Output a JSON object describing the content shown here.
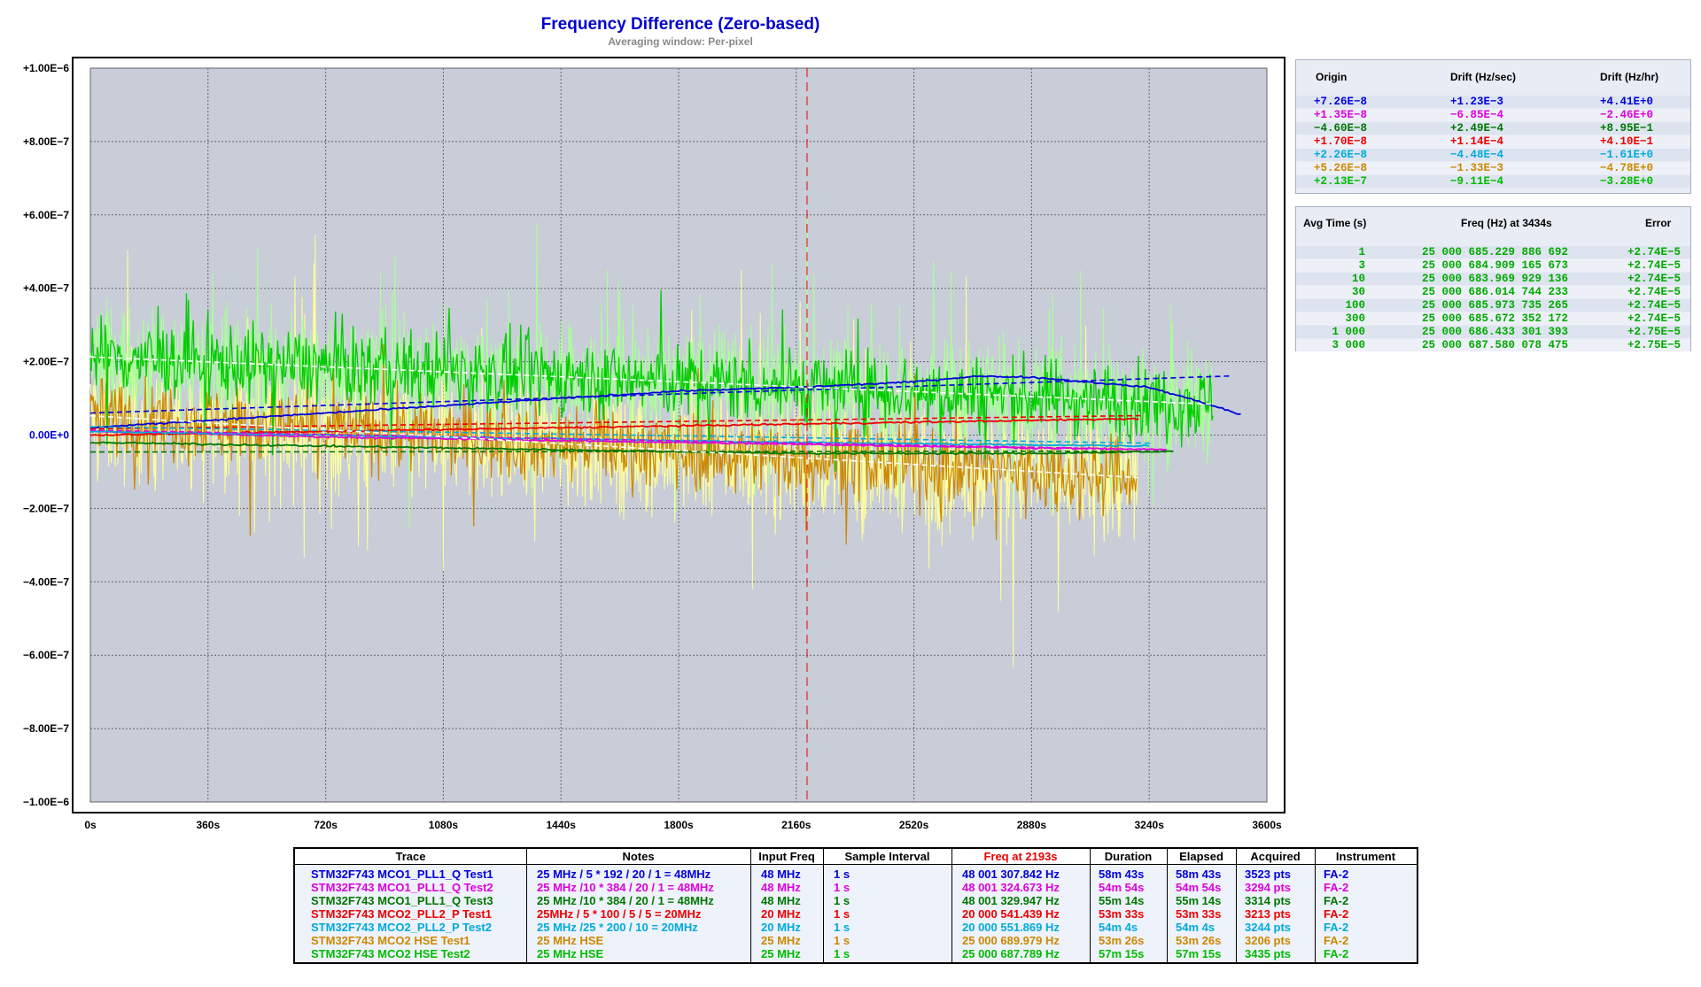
{
  "chart_data": {
    "type": "line",
    "title": "Frequency Difference (Zero-based)",
    "subtitle": "Averaging window: Per-pixel",
    "xlim": [
      0,
      3600
    ],
    "ylim": [
      -1e-06,
      1e-06
    ],
    "grid": true,
    "x_ticks": [
      "0s",
      "360s",
      "720s",
      "1080s",
      "1440s",
      "1800s",
      "2160s",
      "2520s",
      "2880s",
      "3240s",
      "3600s"
    ],
    "y_ticks": [
      "+1.00E−6",
      "+8.00E−7",
      "+6.00E−7",
      "+4.00E−7",
      "+2.00E−7",
      "0.00E+0",
      "−2.00E−7",
      "−4.00E−7",
      "−6.00E−7",
      "−8.00E−7",
      "−1.00E−6"
    ],
    "marker_x": 2193,
    "series": [
      {
        "name": "STM32F743 MCO1_PLL1_Q Test1",
        "color": "#0000dd",
        "duration": 3523,
        "drift_start": 7.26e-08,
        "trend": [
          [
            0,
            2e-08
          ],
          [
            360,
            4e-08
          ],
          [
            720,
            6e-08
          ],
          [
            1080,
            8e-08
          ],
          [
            1440,
            1e-07
          ],
          [
            1800,
            1.2e-07
          ],
          [
            2160,
            1.3e-07
          ],
          [
            2520,
            1.45e-07
          ],
          [
            2700,
            1.6e-07
          ],
          [
            2880,
            1.58e-07
          ],
          [
            3240,
            1.3e-07
          ],
          [
            3400,
            9e-08
          ],
          [
            3523,
            5.5e-08
          ]
        ],
        "fit": [
          [
            0,
            6e-08
          ],
          [
            3523,
            1.62e-07
          ]
        ]
      },
      {
        "name": "STM32F743 MCO1_PLL1_Q Test2",
        "color": "#dd00dd",
        "duration": 3294,
        "drift_start": 1.35e-08,
        "trend": [
          [
            0,
            1e-08
          ],
          [
            720,
            -5e-09
          ],
          [
            1440,
            -1.5e-08
          ],
          [
            2160,
            -2.5e-08
          ],
          [
            2880,
            -3.5e-08
          ],
          [
            3294,
            -4e-08
          ]
        ],
        "fit": [
          [
            0,
            1.35e-08
          ],
          [
            3294,
            -4e-08
          ]
        ]
      },
      {
        "name": "STM32F743 MCO1_PLL1_Q Test3",
        "color": "#007700",
        "duration": 3314,
        "drift_start": -4.6e-08,
        "trend": [
          [
            0,
            -2e-08
          ],
          [
            720,
            -3e-08
          ],
          [
            1440,
            -4e-08
          ],
          [
            2160,
            -5e-08
          ],
          [
            2880,
            -5e-08
          ],
          [
            3314,
            -4.5e-08
          ]
        ],
        "fit": [
          [
            0,
            -4.6e-08
          ],
          [
            3314,
            -4.4e-08
          ]
        ]
      },
      {
        "name": "STM32F743 MCO2_PLL2_P Test1",
        "color": "#ee0000",
        "duration": 3213,
        "drift_start": 1.7e-08,
        "trend": [
          [
            0,
            0
          ],
          [
            720,
            1e-08
          ],
          [
            1440,
            2e-08
          ],
          [
            2160,
            3e-08
          ],
          [
            2880,
            4e-08
          ],
          [
            3213,
            4.5e-08
          ]
        ],
        "fit": [
          [
            0,
            1.7e-08
          ],
          [
            3213,
            5.3e-08
          ]
        ]
      },
      {
        "name": "STM32F743 MCO2_PLL2_P Test2",
        "color": "#00aadd",
        "duration": 3244,
        "drift_start": 2.26e-08,
        "trend": [
          [
            0,
            1e-08
          ],
          [
            1080,
            -5e-09
          ],
          [
            2160,
            -2e-08
          ],
          [
            3244,
            -3e-08
          ]
        ],
        "fit": [
          [
            0,
            2.26e-08
          ],
          [
            3244,
            -2.2e-08
          ]
        ]
      },
      {
        "name": "STM32F743 MCO2 HSE Test1",
        "color": "#cc8800",
        "noise_color": "#ffff99",
        "duration": 3206,
        "drift_start": 5.26e-08,
        "noise": 1.6e-07,
        "fit": [
          [
            0,
            5.26e-08
          ],
          [
            3206,
            -1.16e-07
          ]
        ]
      },
      {
        "name": "STM32F743 MCO2 HSE Test2",
        "color": "#00cc00",
        "noise_color": "#aaff99",
        "duration": 3435,
        "drift_start": 2.13e-07,
        "noise": 1.4e-07,
        "fit": [
          [
            0,
            2.13e-07
          ],
          [
            3435,
            8.4e-08
          ]
        ]
      }
    ]
  },
  "drift_panel": {
    "headers": [
      "Origin",
      "Drift (Hz/sec)",
      "Drift (Hz/hr)"
    ],
    "rows": [
      {
        "origin": "+7.26E−8",
        "hz_sec": "+1.23E−3",
        "hz_hr": "+4.41E+0",
        "color": "#0000dd"
      },
      {
        "origin": "+1.35E−8",
        "hz_sec": "−6.85E−4",
        "hz_hr": "−2.46E+0",
        "color": "#dd00dd"
      },
      {
        "origin": "−4.60E−8",
        "hz_sec": "+2.49E−4",
        "hz_hr": "+8.95E−1",
        "color": "#007700"
      },
      {
        "origin": "+1.70E−8",
        "hz_sec": "+1.14E−4",
        "hz_hr": "+4.10E−1",
        "color": "#ee0000"
      },
      {
        "origin": "+2.26E−8",
        "hz_sec": "−4.48E−4",
        "hz_hr": "−1.61E+0",
        "color": "#00aadd"
      },
      {
        "origin": "+5.26E−8",
        "hz_sec": "−1.33E−3",
        "hz_hr": "−4.78E+0",
        "color": "#cc8800"
      },
      {
        "origin": "+2.13E−7",
        "hz_sec": "−9.11E−4",
        "hz_hr": "−3.28E+0",
        "color": "#00bb00"
      }
    ]
  },
  "avg_panel": {
    "headers": [
      "Avg Time (s)",
      "Freq (Hz) at 3434s",
      "Error"
    ],
    "color": "#00aa00",
    "rows": [
      {
        "t": "1",
        "freq": "25 000 685.229 886 692",
        "err": "+2.74E−5"
      },
      {
        "t": "3",
        "freq": "25 000 684.909 165 673",
        "err": "+2.74E−5"
      },
      {
        "t": "10",
        "freq": "25 000 683.969 929 136",
        "err": "+2.74E−5"
      },
      {
        "t": "30",
        "freq": "25 000 686.014 744 233",
        "err": "+2.74E−5"
      },
      {
        "t": "100",
        "freq": "25 000 685.973 735 265",
        "err": "+2.74E−5"
      },
      {
        "t": "300",
        "freq": "25 000 685.672 352 172",
        "err": "+2.74E−5"
      },
      {
        "t": "1 000",
        "freq": "25 000 686.433 301 393",
        "err": "+2.75E−5"
      },
      {
        "t": "3 000",
        "freq": "25 000 687.580 078 475",
        "err": "+2.75E−5"
      }
    ]
  },
  "legend": {
    "headers": [
      "Trace",
      "Notes",
      "Input Freq",
      "Sample Interval",
      "Freq at 2193s",
      "Duration",
      "Elapsed",
      "Acquired",
      "Instrument"
    ],
    "rows": [
      {
        "trace": "STM32F743 MCO1_PLL1_Q  Test1",
        "notes": "25 MHz / 5 * 192 / 20 / 1 = 48MHz",
        "input": "48 MHz",
        "interval": "1 s",
        "freq": "48 001 307.842 Hz",
        "duration": "58m 43s",
        "elapsed": "58m 43s",
        "acquired": "3523 pts",
        "instrument": "FA-2",
        "color": "#0000dd"
      },
      {
        "trace": "STM32F743 MCO1_PLL1_Q  Test2",
        "notes": "25 MHz /10 * 384 / 20 / 1 = 48MHz",
        "input": "48 MHz",
        "interval": "1 s",
        "freq": "48 001 324.673 Hz",
        "duration": "54m 54s",
        "elapsed": "54m 54s",
        "acquired": "3294 pts",
        "instrument": "FA-2",
        "color": "#dd00dd"
      },
      {
        "trace": "STM32F743 MCO1_PLL1_Q  Test3",
        "notes": "25 MHz /10 * 384 / 20 / 1 = 48MHz",
        "input": "48 MHz",
        "interval": "1 s",
        "freq": "48 001 329.947 Hz",
        "duration": "55m 14s",
        "elapsed": "55m 14s",
        "acquired": "3314 pts",
        "instrument": "FA-2",
        "color": "#007700"
      },
      {
        "trace": "STM32F743 MCO2_PLL2_P  Test1",
        "notes": "25MHz / 5 * 100 / 5 / 5 = 20MHz",
        "input": "20 MHz",
        "interval": "1 s",
        "freq": "20 000 541.439 Hz",
        "duration": "53m 33s",
        "elapsed": "53m 33s",
        "acquired": "3213 pts",
        "instrument": "FA-2",
        "color": "#ee0000"
      },
      {
        "trace": "STM32F743 MCO2_PLL2_P  Test2",
        "notes": "25 MHz /25 * 200 / 10 = 20MHz",
        "input": "20 MHz",
        "interval": "1 s",
        "freq": "20 000 551.869 Hz",
        "duration": "54m 4s",
        "elapsed": "54m 4s",
        "acquired": "3244 pts",
        "instrument": "FA-2",
        "color": "#00aadd"
      },
      {
        "trace": "STM32F743 MCO2 HSE  Test1",
        "notes": "25 MHz HSE",
        "input": "25 MHz",
        "interval": "1 s",
        "freq": "25 000 689.979 Hz",
        "duration": "53m 26s",
        "elapsed": "53m 26s",
        "acquired": "3206 pts",
        "instrument": "FA-2",
        "color": "#cc8800"
      },
      {
        "trace": "STM32F743 MCO2 HSE  Test2",
        "notes": "25 MHz HSE",
        "input": "25 MHz",
        "interval": "1 s",
        "freq": "25 000 687.789 Hz",
        "duration": "57m 15s",
        "elapsed": "57m 15s",
        "acquired": "3435 pts",
        "instrument": "FA-2",
        "color": "#00bb00"
      }
    ]
  }
}
